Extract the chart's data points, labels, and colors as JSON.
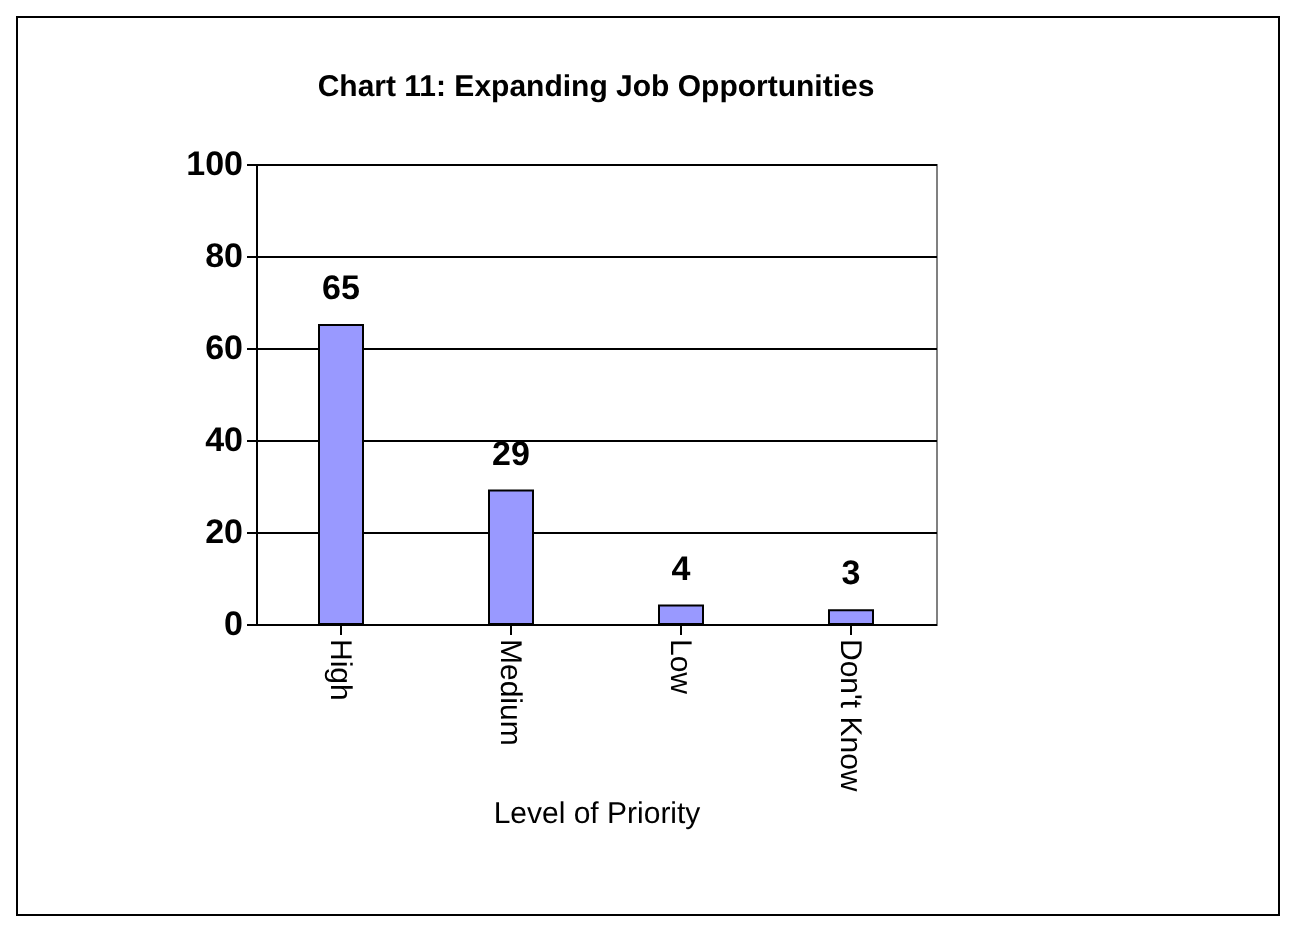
{
  "chart_data": {
    "type": "bar",
    "title": "Chart 11: Expanding Job Opportunities",
    "xlabel": "Level of Priority",
    "categories": [
      "High",
      "Medium",
      "Low",
      "Don't Know"
    ],
    "values": [
      65,
      29,
      4,
      3
    ],
    "color": "#9999ff",
    "data_labels": true,
    "ylim": [
      0,
      100
    ],
    "yticks": [
      0,
      20,
      40,
      60,
      80,
      100
    ],
    "grid": "y"
  }
}
